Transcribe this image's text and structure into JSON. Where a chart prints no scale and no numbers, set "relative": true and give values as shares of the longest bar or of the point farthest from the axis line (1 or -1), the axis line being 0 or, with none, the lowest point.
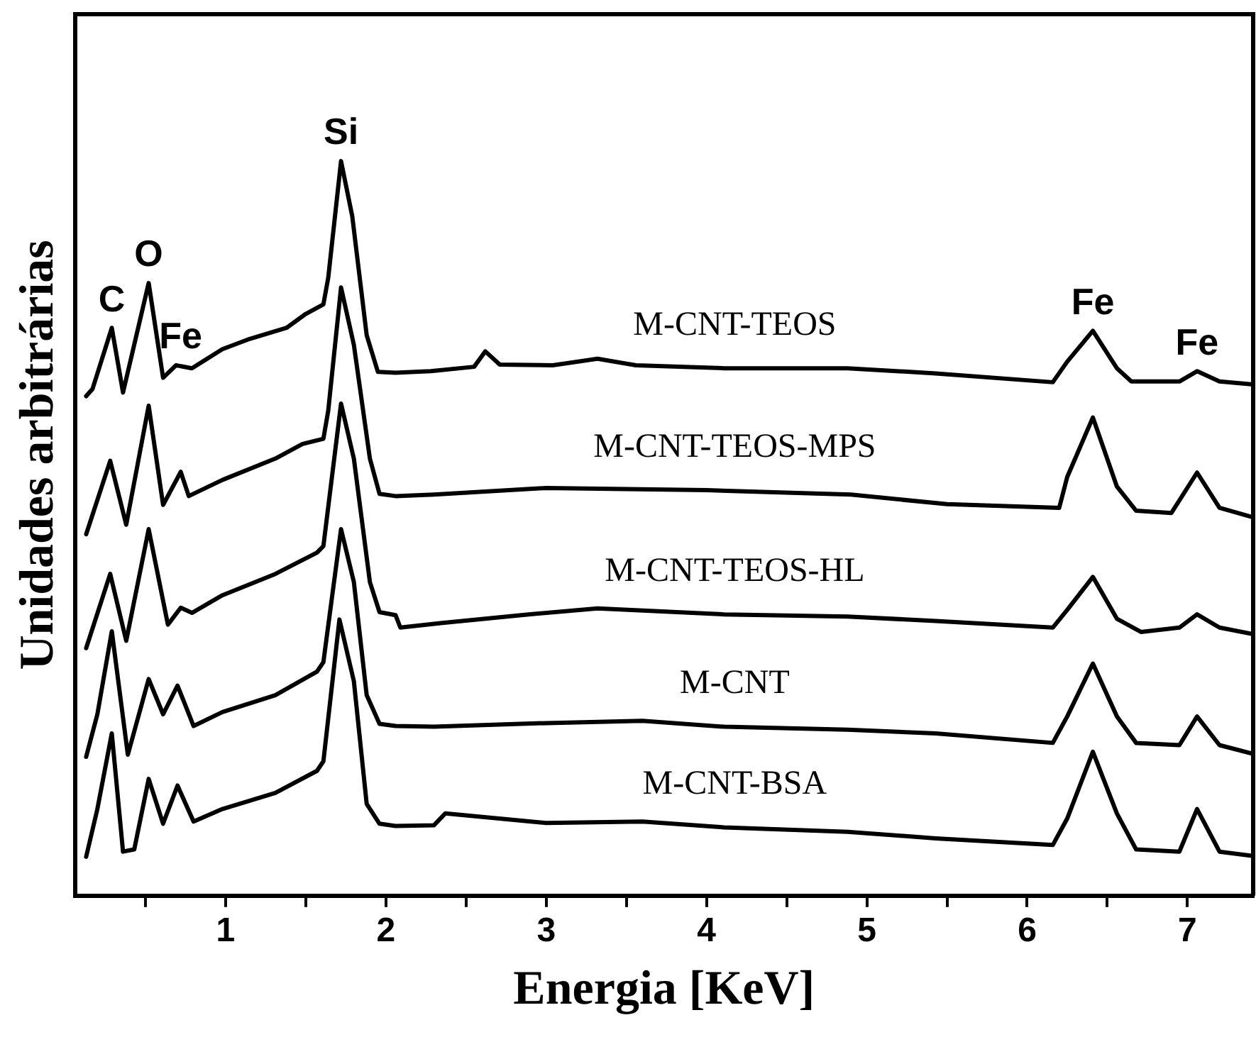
{
  "chart_data": {
    "type": "line",
    "xlabel": "Energia [KeV]",
    "ylabel": "Unidades arbitrárias",
    "relative": true,
    "grid": false,
    "legend": false,
    "marker": "none",
    "line_style": "solid",
    "xlim": [
      0.06,
      7.41
    ],
    "xticks": [
      {
        "value": 0.5,
        "label": null
      },
      1,
      {
        "value": 1.5,
        "label": null
      },
      2,
      {
        "value": 2.5,
        "label": null
      },
      3,
      {
        "value": 3.5,
        "label": null
      },
      4,
      {
        "value": 4.5,
        "label": null
      },
      5,
      {
        "value": 5.5,
        "label": null
      },
      6,
      {
        "value": 6.5,
        "label": null
      },
      7
    ],
    "annotations": [
      {
        "text": "C",
        "x": 0.29,
        "y": 0.773
      },
      {
        "text": "O",
        "x": 0.52,
        "y": 0.834
      },
      {
        "text": "Fe",
        "x": 0.72,
        "y": 0.722
      },
      {
        "text": "Si",
        "x": 1.72,
        "y": 1.0
      },
      {
        "text": "Fe",
        "x": 6.41,
        "y": 0.769
      },
      {
        "text": "Fe",
        "x": 7.06,
        "y": 0.714
      }
    ],
    "series": [
      {
        "name": "M-CNT-TEOS",
        "color": "#000000",
        "x": [
          0.13,
          0.17,
          0.29,
          0.36,
          0.52,
          0.61,
          0.69,
          0.79,
          0.98,
          1.15,
          1.38,
          1.5,
          1.61,
          1.64,
          1.72,
          1.79,
          1.88,
          1.95,
          2.06,
          2.28,
          2.55,
          2.62,
          2.71,
          3.04,
          3.32,
          3.56,
          4.11,
          4.88,
          5.43,
          6.16,
          6.25,
          6.41,
          6.56,
          6.65,
          6.95,
          7.06,
          7.2,
          7.41
        ],
        "values": [
          0.68,
          0.69,
          0.773,
          0.685,
          0.834,
          0.705,
          0.722,
          0.718,
          0.744,
          0.758,
          0.773,
          0.792,
          0.805,
          0.841,
          1.0,
          0.925,
          0.763,
          0.713,
          0.712,
          0.714,
          0.72,
          0.741,
          0.723,
          0.722,
          0.731,
          0.722,
          0.718,
          0.718,
          0.711,
          0.699,
          0.727,
          0.769,
          0.718,
          0.7,
          0.7,
          0.714,
          0.7,
          0.696
        ]
      },
      {
        "name": "M-CNT-TEOS-MPS",
        "color": "#000000",
        "x": [
          0.13,
          0.28,
          0.38,
          0.52,
          0.61,
          0.72,
          0.77,
          0.98,
          1.31,
          1.48,
          1.61,
          1.64,
          1.72,
          1.8,
          1.9,
          1.96,
          2.06,
          2.3,
          3.0,
          4.0,
          4.9,
          5.5,
          6.2,
          6.25,
          6.41,
          6.56,
          6.68,
          6.9,
          7.06,
          7.2,
          7.41
        ],
        "values": [
          0.492,
          0.592,
          0.505,
          0.667,
          0.532,
          0.577,
          0.544,
          0.566,
          0.595,
          0.615,
          0.622,
          0.66,
          0.828,
          0.75,
          0.595,
          0.547,
          0.544,
          0.546,
          0.555,
          0.552,
          0.546,
          0.533,
          0.528,
          0.57,
          0.651,
          0.557,
          0.524,
          0.521,
          0.576,
          0.528,
          0.515
        ]
      },
      {
        "name": "M-CNT-TEOS-HL",
        "color": "#000000",
        "x": [
          0.13,
          0.28,
          0.38,
          0.52,
          0.64,
          0.72,
          0.79,
          0.98,
          1.31,
          1.57,
          1.61,
          1.72,
          1.8,
          1.9,
          1.96,
          2.06,
          2.09,
          2.34,
          2.89,
          3.32,
          4.11,
          4.88,
          5.43,
          6.16,
          6.25,
          6.41,
          6.56,
          6.71,
          6.95,
          7.06,
          7.2,
          7.41
        ],
        "values": [
          0.337,
          0.438,
          0.347,
          0.499,
          0.369,
          0.392,
          0.385,
          0.409,
          0.438,
          0.467,
          0.476,
          0.67,
          0.595,
          0.427,
          0.386,
          0.382,
          0.365,
          0.371,
          0.383,
          0.391,
          0.383,
          0.38,
          0.374,
          0.365,
          0.389,
          0.434,
          0.377,
          0.359,
          0.365,
          0.383,
          0.365,
          0.356
        ]
      },
      {
        "name": "M-CNT",
        "color": "#000000",
        "x": [
          0.13,
          0.2,
          0.29,
          0.39,
          0.52,
          0.61,
          0.7,
          0.8,
          0.98,
          1.31,
          1.57,
          1.61,
          1.72,
          1.8,
          1.88,
          1.96,
          2.06,
          2.3,
          3.0,
          3.6,
          4.11,
          4.88,
          5.43,
          6.16,
          6.25,
          6.41,
          6.56,
          6.68,
          6.95,
          7.06,
          7.2,
          7.41
        ],
        "values": [
          0.189,
          0.247,
          0.36,
          0.192,
          0.295,
          0.247,
          0.286,
          0.231,
          0.25,
          0.273,
          0.305,
          0.318,
          0.499,
          0.427,
          0.273,
          0.234,
          0.231,
          0.23,
          0.235,
          0.238,
          0.23,
          0.226,
          0.221,
          0.208,
          0.244,
          0.316,
          0.244,
          0.208,
          0.205,
          0.244,
          0.205,
          0.193
        ]
      },
      {
        "name": "M-CNT-BSA",
        "color": "#000000",
        "x": [
          0.13,
          0.2,
          0.29,
          0.36,
          0.43,
          0.52,
          0.61,
          0.7,
          0.8,
          0.98,
          1.31,
          1.57,
          1.61,
          1.71,
          1.8,
          1.88,
          1.96,
          2.06,
          2.3,
          2.37,
          3.0,
          3.6,
          4.11,
          4.88,
          5.43,
          6.16,
          6.25,
          6.41,
          6.56,
          6.68,
          6.95,
          7.06,
          7.2,
          7.41
        ],
        "values": [
          0.053,
          0.118,
          0.221,
          0.06,
          0.063,
          0.159,
          0.098,
          0.15,
          0.101,
          0.118,
          0.14,
          0.17,
          0.183,
          0.376,
          0.292,
          0.125,
          0.098,
          0.095,
          0.096,
          0.112,
          0.099,
          0.101,
          0.093,
          0.087,
          0.078,
          0.069,
          0.105,
          0.196,
          0.112,
          0.063,
          0.06,
          0.118,
          0.06,
          0.054
        ]
      }
    ]
  }
}
